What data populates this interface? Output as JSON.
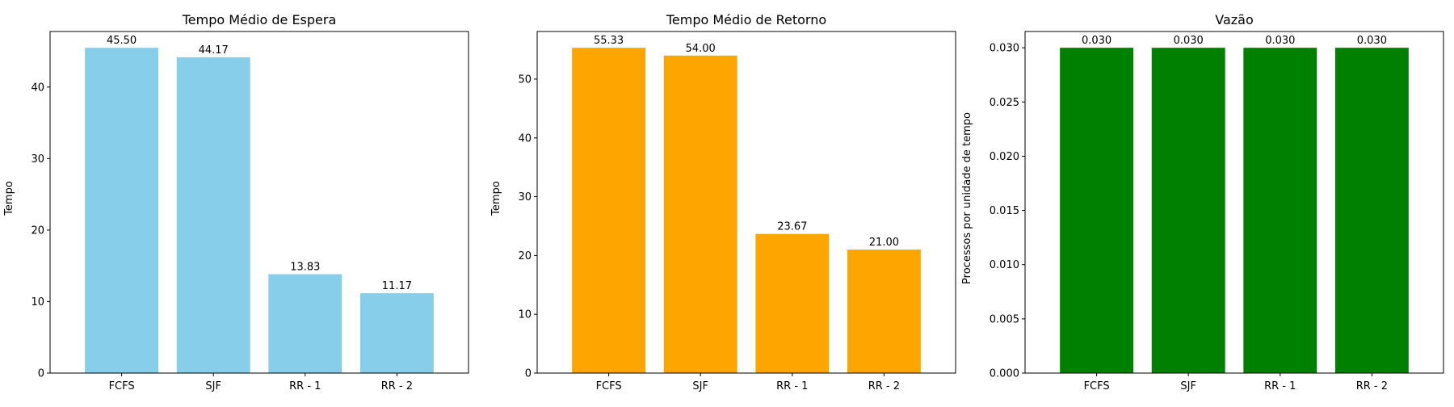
{
  "chart_data": [
    {
      "type": "bar",
      "title": "Tempo Médio de Espera",
      "xlabel": "",
      "ylabel": "Tempo",
      "categories": [
        "FCFS",
        "SJF",
        "RR - 1",
        "RR - 2"
      ],
      "values": [
        45.5,
        44.17,
        13.83,
        11.17
      ],
      "value_labels": [
        "45.50",
        "44.17",
        "13.83",
        "11.17"
      ],
      "ylim": [
        0,
        47.775
      ],
      "yticks": [
        0,
        10,
        20,
        30,
        40
      ],
      "ytick_labels": [
        "0",
        "10",
        "20",
        "30",
        "40"
      ],
      "color": "#87CEEB",
      "grid": false
    },
    {
      "type": "bar",
      "title": "Tempo Médio de Retorno",
      "xlabel": "",
      "ylabel": "Tempo",
      "categories": [
        "FCFS",
        "SJF",
        "RR - 1",
        "RR - 2"
      ],
      "values": [
        55.33,
        54.0,
        23.67,
        21.0
      ],
      "value_labels": [
        "55.33",
        "54.00",
        "23.67",
        "21.00"
      ],
      "ylim": [
        0,
        58.1
      ],
      "yticks": [
        0,
        10,
        20,
        30,
        40,
        50
      ],
      "ytick_labels": [
        "0",
        "10",
        "20",
        "30",
        "40",
        "50"
      ],
      "color": "#FFA500",
      "grid": false
    },
    {
      "type": "bar",
      "title": "Vazão",
      "xlabel": "",
      "ylabel": "Processos por unidade de tempo",
      "categories": [
        "FCFS",
        "SJF",
        "RR - 1",
        "RR - 2"
      ],
      "values": [
        0.03,
        0.03,
        0.03,
        0.03
      ],
      "value_labels": [
        "0.030",
        "0.030",
        "0.030",
        "0.030"
      ],
      "ylim": [
        0,
        0.0315
      ],
      "yticks": [
        0,
        0.005,
        0.01,
        0.015,
        0.02,
        0.025,
        0.03
      ],
      "ytick_labels": [
        "0.000",
        "0.005",
        "0.010",
        "0.015",
        "0.020",
        "0.025",
        "0.030"
      ],
      "color": "#008000",
      "grid": false
    }
  ]
}
